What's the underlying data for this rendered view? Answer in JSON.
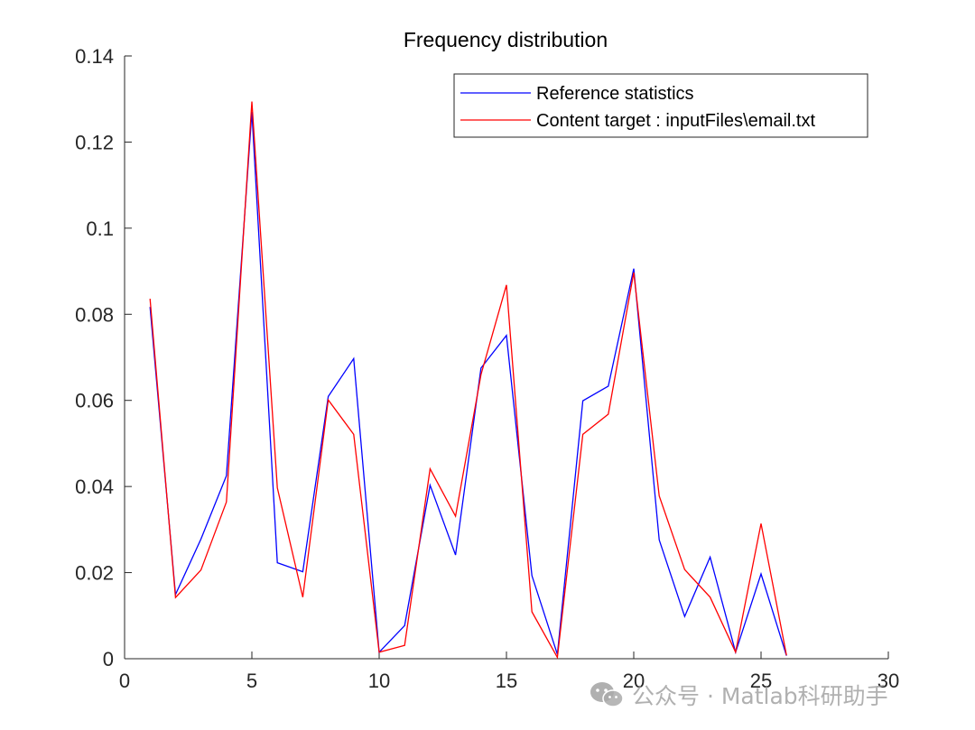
{
  "chart_data": {
    "type": "line",
    "title": "Frequency distribution",
    "xlabel": "",
    "ylabel": "",
    "xlim": [
      0,
      30
    ],
    "ylim": [
      0,
      0.14
    ],
    "xticks": [
      0,
      5,
      10,
      15,
      20,
      25,
      30
    ],
    "xtick_labels": [
      "0",
      "5",
      "10",
      "15",
      "20",
      "25",
      "30"
    ],
    "yticks": [
      0,
      0.02,
      0.04,
      0.06,
      0.08,
      0.1,
      0.12,
      0.14
    ],
    "ytick_labels": [
      "0",
      "0.02",
      "0.04",
      "0.06",
      "0.08",
      "0.1",
      "0.12",
      "0.14"
    ],
    "grid": false,
    "legend_position": "top-right",
    "x": [
      1,
      2,
      3,
      4,
      5,
      6,
      7,
      8,
      9,
      10,
      11,
      12,
      13,
      14,
      15,
      16,
      17,
      18,
      19,
      20,
      21,
      22,
      23,
      24,
      25,
      26
    ],
    "series": [
      {
        "name": "Reference statistics",
        "color": "#0000ff",
        "values": [
          0.0817,
          0.0149,
          0.0278,
          0.0425,
          0.127,
          0.0223,
          0.0202,
          0.0609,
          0.0697,
          0.0015,
          0.0077,
          0.0403,
          0.0241,
          0.0675,
          0.0751,
          0.0193,
          0.001,
          0.0599,
          0.0633,
          0.0906,
          0.0276,
          0.0098,
          0.0236,
          0.0015,
          0.0197,
          0.0007
        ]
      },
      {
        "name": "Content target : inputFiles\\email.txt",
        "color": "#ff0000",
        "values": [
          0.0836,
          0.0142,
          0.0206,
          0.0364,
          0.1294,
          0.0397,
          0.0143,
          0.0601,
          0.0521,
          0.0015,
          0.0031,
          0.0441,
          0.0331,
          0.066,
          0.0868,
          0.0109,
          0.0003,
          0.0521,
          0.0568,
          0.0897,
          0.0378,
          0.0207,
          0.0143,
          0.0015,
          0.0314,
          0.0008
        ]
      }
    ]
  },
  "watermark": {
    "icon": "wechat-icon",
    "text": "公众号 · Matlab科研助手"
  }
}
